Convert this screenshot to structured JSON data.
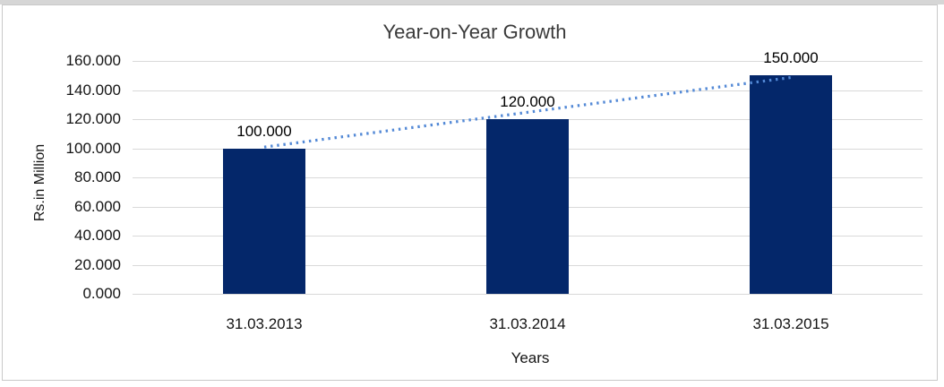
{
  "page": {
    "background_color": "#FFFFFF",
    "top_strip_color": "#D6D6D6",
    "frame_border_color": "#C9C9C9"
  },
  "chart_data": {
    "type": "bar",
    "title": "Year-on-Year Growth",
    "xlabel": "Years",
    "ylabel": "Rs.in Million",
    "categories": [
      "31.03.2013",
      "31.03.2014",
      "31.03.2015"
    ],
    "values": [
      100,
      120,
      150
    ],
    "data_labels": [
      "100.000",
      "120.000",
      "150.000"
    ],
    "y_ticks": [
      {
        "value": 0,
        "label": "0.000"
      },
      {
        "value": 20,
        "label": "20.000"
      },
      {
        "value": 40,
        "label": "40.000"
      },
      {
        "value": 60,
        "label": "60.000"
      },
      {
        "value": 80,
        "label": "80.000"
      },
      {
        "value": 100,
        "label": "100.000"
      },
      {
        "value": 120,
        "label": "120.000"
      },
      {
        "value": 140,
        "label": "140.000"
      },
      {
        "value": 160,
        "label": "160.000"
      }
    ],
    "ylim": [
      0,
      160
    ],
    "grid": true,
    "legend": "none",
    "gridline_color": "#D9D9D9",
    "bar_color": "#04276A",
    "title_color": "#3A3A3A",
    "axis_text_color": "#141414",
    "data_label_color": "#000000",
    "trendline": {
      "type": "linear",
      "style": "dotted",
      "color": "#5389D6",
      "start": {
        "category_index": 0,
        "value": 100.8
      },
      "end": {
        "category_index": 2,
        "value": 148.6
      }
    }
  }
}
